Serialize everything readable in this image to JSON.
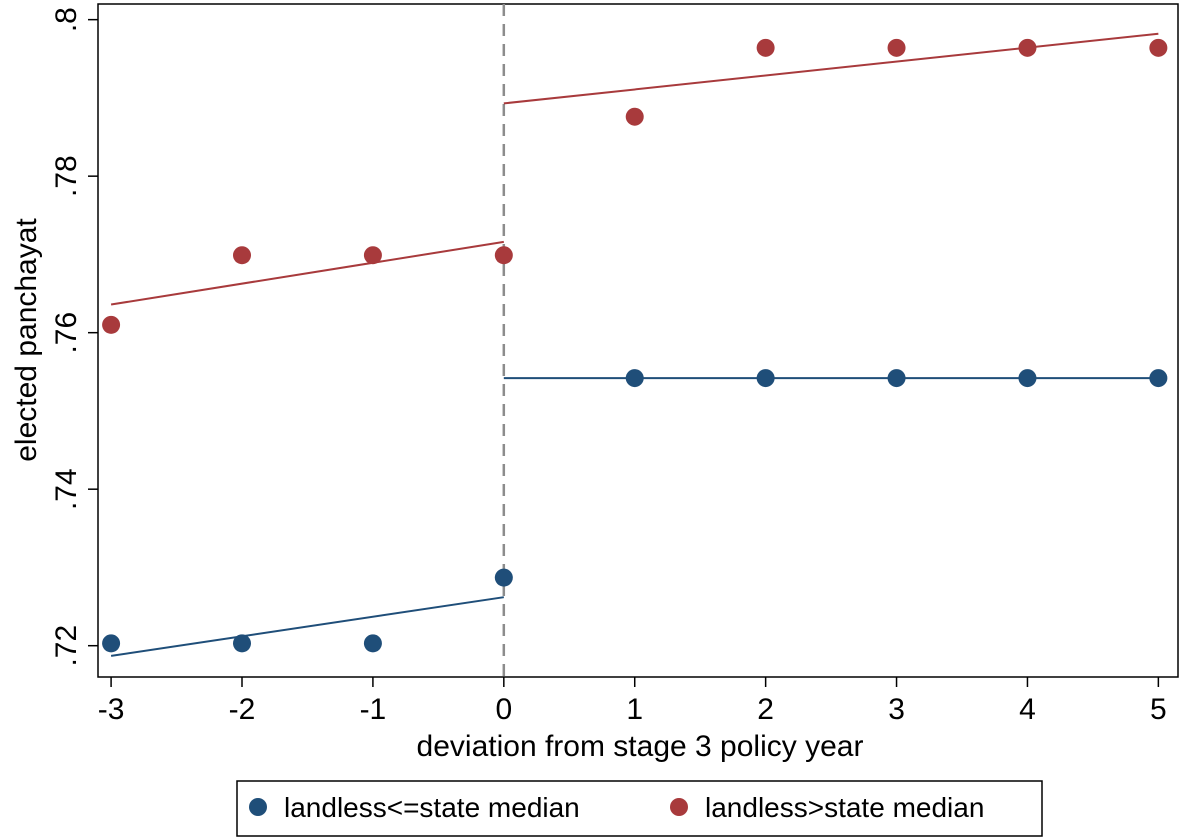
{
  "chart_data": {
    "type": "scatter",
    "title": "",
    "xlabel": "deviation from stage 3 policy year",
    "ylabel": "elected panchayat",
    "xlim": [
      -3.1,
      5.15
    ],
    "ylim": [
      0.716,
      0.802
    ],
    "xticks": [
      -3,
      -2,
      -1,
      0,
      1,
      2,
      3,
      4,
      5
    ],
    "xtick_labels": [
      "-3",
      "-2",
      "-1",
      "0",
      "1",
      "2",
      "3",
      "4",
      "5"
    ],
    "yticks": [
      0.72,
      0.74,
      0.76,
      0.78,
      0.8
    ],
    "ytick_labels": [
      ".72",
      ".74",
      ".76",
      ".78",
      ".8"
    ],
    "vline_x": 0,
    "grid": false,
    "legend_position": "bottom",
    "series": [
      {
        "name": "landless<=state median",
        "color": "#1f4e79",
        "x": [
          -3,
          -2,
          -1,
          0,
          1,
          2,
          3,
          4,
          5
        ],
        "y": [
          0.7203,
          0.7203,
          0.7203,
          0.7287,
          0.7542,
          0.7542,
          0.7542,
          0.7542,
          0.7542
        ],
        "fits": [
          {
            "x": [
              -3,
              0
            ],
            "y": [
              0.7187,
              0.7262
            ]
          },
          {
            "x": [
              0,
              5
            ],
            "y": [
              0.7542,
              0.7542
            ]
          }
        ]
      },
      {
        "name": "landless>state median",
        "color": "#a83a3c",
        "x": [
          -3,
          -2,
          -1,
          0,
          1,
          2,
          3,
          4,
          5
        ],
        "y": [
          0.761,
          0.7699,
          0.7699,
          0.7699,
          0.7876,
          0.7964,
          0.7964,
          0.7964,
          0.7964
        ],
        "fits": [
          {
            "x": [
              -3,
              0
            ],
            "y": [
              0.7636,
              0.7716
            ]
          },
          {
            "x": [
              0,
              5
            ],
            "y": [
              0.7893,
              0.7982
            ]
          }
        ]
      }
    ]
  }
}
